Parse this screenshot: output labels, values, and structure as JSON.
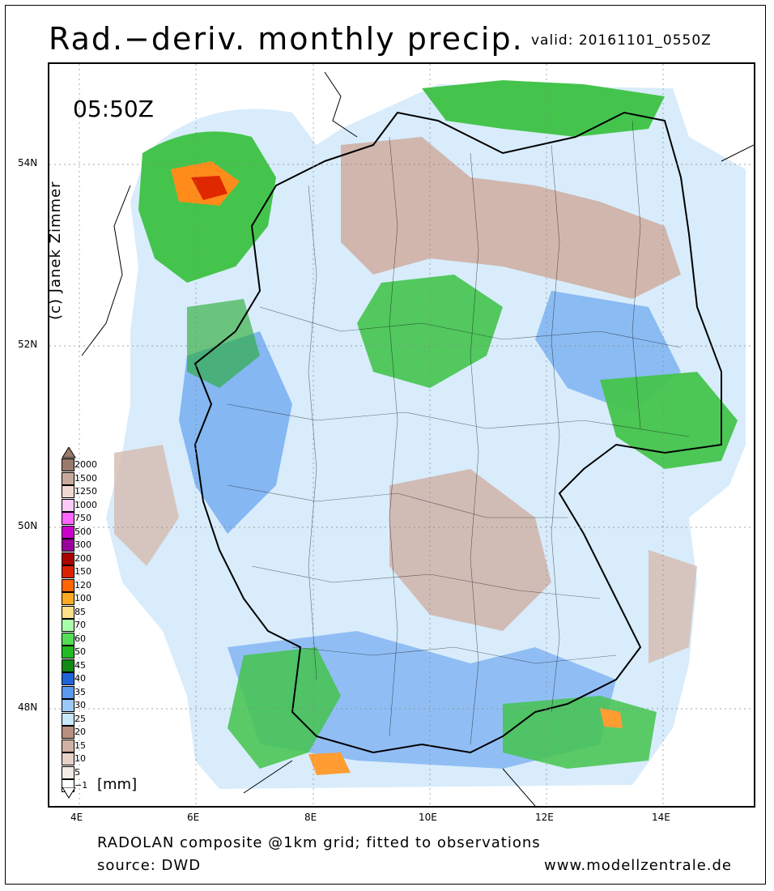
{
  "title": "Rad.−deriv. monthly precip.",
  "valid": "valid: 20161101_0550Z",
  "time_label": "05:50Z",
  "credit": "(c) Janek Zimmer",
  "y_ticks": [
    "54N",
    "52N",
    "50N",
    "48N"
  ],
  "x_ticks": [
    "4E",
    "6E",
    "8E",
    "10E",
    "12E",
    "14E"
  ],
  "footer_line1": "RADOLAN composite @1km grid; fitted to observations",
  "footer_line2": "source: DWD",
  "footer_url": "www.modellzentrale.de",
  "legend": {
    "unit": "[mm]",
    "entries": [
      {
        "label": "2000",
        "color": "#9a7a6c"
      },
      {
        "label": "1500",
        "color": "#c9a99c"
      },
      {
        "label": "1250",
        "color": "#f0d8d0"
      },
      {
        "label": "1000",
        "color": "#fccaf6"
      },
      {
        "label": "750",
        "color": "#ff66ff"
      },
      {
        "label": "500",
        "color": "#cc00cc"
      },
      {
        "label": "300",
        "color": "#990099"
      },
      {
        "label": "200",
        "color": "#aa0000"
      },
      {
        "label": "150",
        "color": "#dd2200"
      },
      {
        "label": "120",
        "color": "#ff6600"
      },
      {
        "label": "100",
        "color": "#ffaa22"
      },
      {
        "label": "85",
        "color": "#ffe08a"
      },
      {
        "label": "70",
        "color": "#aaffaa"
      },
      {
        "label": "60",
        "color": "#55dd55"
      },
      {
        "label": "50",
        "color": "#22bb22"
      },
      {
        "label": "45",
        "color": "#118811"
      },
      {
        "label": "40",
        "color": "#1f64d8"
      },
      {
        "label": "35",
        "color": "#5a9aee"
      },
      {
        "label": "30",
        "color": "#9cc8f7"
      },
      {
        "label": "25",
        "color": "#c8e8fb"
      },
      {
        "label": "20",
        "color": "#b88f80"
      },
      {
        "label": "15",
        "color": "#d1b1a3"
      },
      {
        "label": "10",
        "color": "#e7d2c8"
      },
      {
        "label": "5",
        "color": "#f6ece6"
      },
      {
        "label": "−1",
        "color": "#ffffff"
      }
    ]
  }
}
